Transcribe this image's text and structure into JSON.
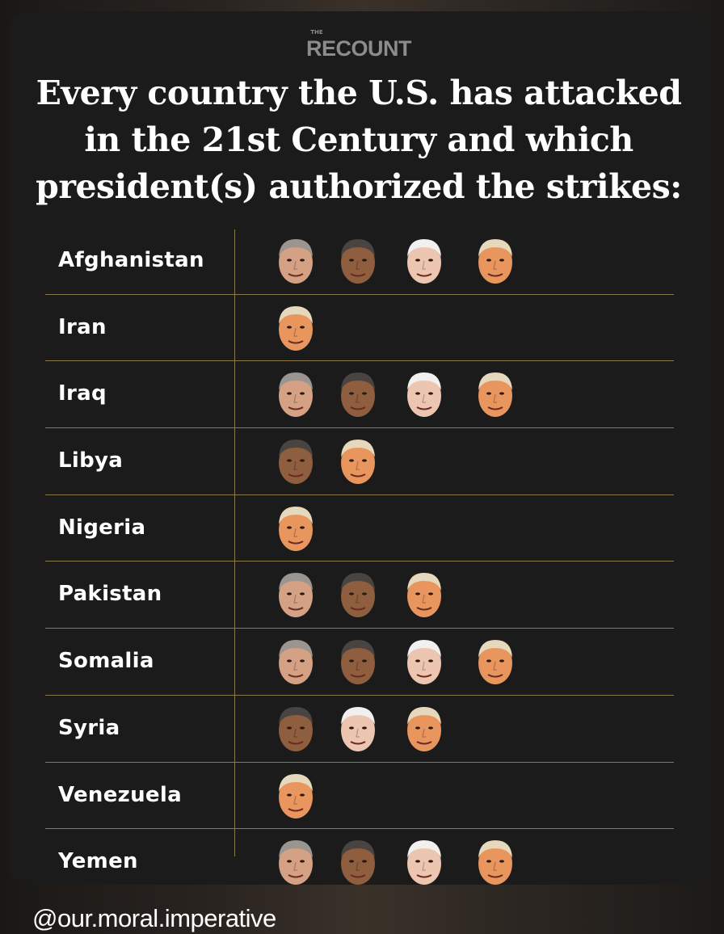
{
  "brand": {
    "the": "THE",
    "name": "RECOUNT"
  },
  "title_lines": [
    "Every country the U.S. has attacked",
    "in the 21st Century and which",
    "president(s) authorized the strikes:"
  ],
  "face_styles": {
    "bush-face-icon": {
      "skin": "#d4a184",
      "hair": "#9a9590"
    },
    "obama-face-icon": {
      "skin": "#8e5e3e",
      "hair": "#4a4440"
    },
    "biden-face-icon": {
      "skin": "#ecc6b0",
      "hair": "#f2f0ee"
    },
    "trump-face-icon": {
      "skin": "#e8955e",
      "hair": "#e6d8bc"
    }
  },
  "rows": [
    {
      "country": "Afghanistan",
      "faces": [
        "bush-face-icon",
        "obama-face-icon",
        "biden-face-icon",
        "trump-face-icon"
      ]
    },
    {
      "country": "Iran",
      "faces": [
        "trump-face-icon"
      ]
    },
    {
      "country": "Iraq",
      "faces": [
        "bush-face-icon",
        "obama-face-icon",
        "biden-face-icon",
        "trump-face-icon"
      ]
    },
    {
      "country": "Libya",
      "faces": [
        "obama-face-icon",
        "trump-face-icon"
      ]
    },
    {
      "country": "Nigeria",
      "faces": [
        "trump-face-icon"
      ]
    },
    {
      "country": "Pakistan",
      "faces": [
        "bush-face-icon",
        "obama-face-icon",
        "trump-face-icon"
      ]
    },
    {
      "country": "Somalia",
      "faces": [
        "bush-face-icon",
        "obama-face-icon",
        "biden-face-icon",
        "trump-face-icon"
      ]
    },
    {
      "country": "Syria",
      "faces": [
        "obama-face-icon",
        "biden-face-icon",
        "trump-face-icon"
      ]
    },
    {
      "country": "Venezuela",
      "faces": [
        "trump-face-icon"
      ]
    },
    {
      "country": "Yemen",
      "faces": [
        "bush-face-icon",
        "obama-face-icon",
        "biden-face-icon",
        "trump-face-icon"
      ]
    }
  ],
  "handle": "@our.moral.imperative"
}
